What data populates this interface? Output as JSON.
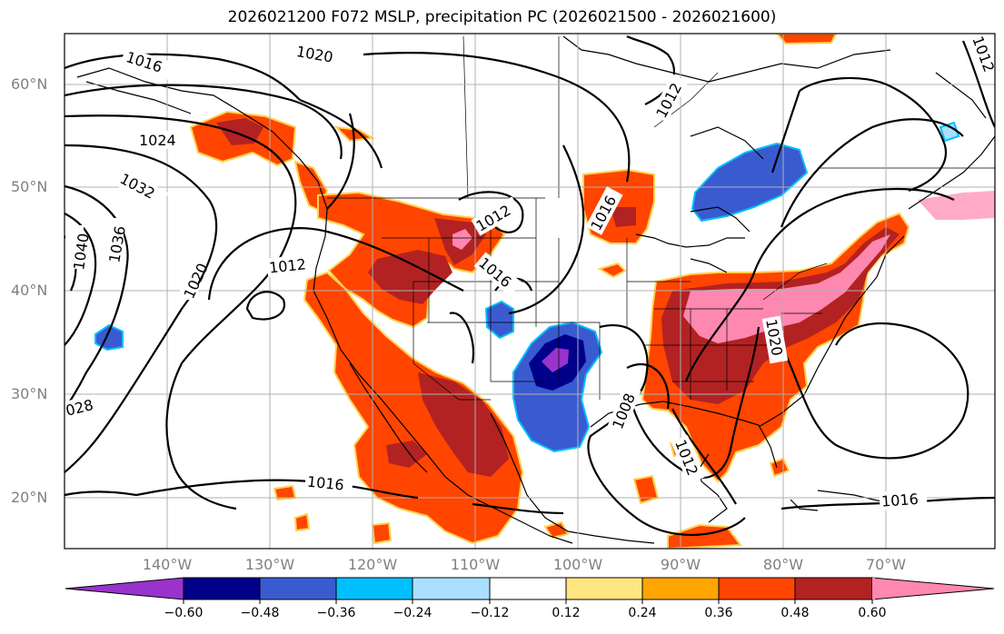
{
  "title": "2026021200 F072 MSLP, precipitation PC (2026021500 - 2026021600)",
  "latitude_labels": [
    "60°N",
    "50°N",
    "40°N",
    "30°N",
    "20°N"
  ],
  "longitude_labels": [
    "140°W",
    "130°W",
    "120°W",
    "110°W",
    "100°W",
    "90°W",
    "80°W",
    "70°W"
  ],
  "isobar_labels": [
    "1016",
    "1020",
    "1024",
    "1032",
    "1036",
    "1040",
    "1020",
    "1012",
    "1012",
    "1016",
    "1016",
    "1012",
    "1008",
    "1012",
    "1020",
    "028",
    "1016",
    "1016",
    "1012"
  ],
  "colorbar": {
    "ticks": [
      "−0.60",
      "−0.48",
      "−0.36",
      "−0.24",
      "−0.12",
      "0.12",
      "0.24",
      "0.36",
      "0.48",
      "0.60"
    ],
    "colors": [
      "#9933cc",
      "#00008b",
      "#3a5bd0",
      "#00bfff",
      "#aadfff",
      "#ffffff",
      "#ffe680",
      "#ffa500",
      "#ff4500",
      "#b22222",
      "#ff88b0"
    ]
  },
  "colors": {
    "land_outline": "#000000",
    "grid": "#b0b0b0",
    "frame": "#000000"
  }
}
